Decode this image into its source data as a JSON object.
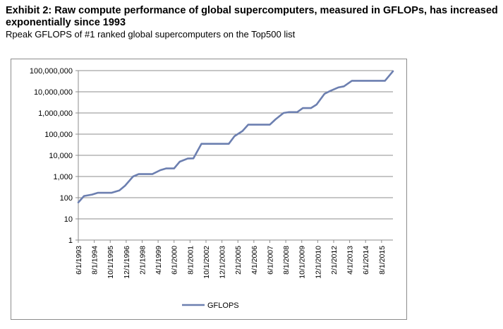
{
  "header": {
    "title": "Exhibit 2: Raw compute performance of global supercomputers, measured in GFLOPs, has increased exponentially since 1993",
    "subtitle": "Rpeak GFLOPS of #1 ranked global supercomputers on the Top500 list"
  },
  "chart_data": {
    "type": "line",
    "title": "",
    "xlabel": "",
    "ylabel": "",
    "y_scale": "log",
    "ylim": [
      1,
      100000000
    ],
    "y_ticks": [
      "1",
      "10",
      "100",
      "1,000",
      "10,000",
      "100,000",
      "1,000,000",
      "10,000,000",
      "100,000,000"
    ],
    "x_tick_labels": [
      "6/1/1993",
      "8/1/1994",
      "10/1/1995",
      "12/1/1996",
      "2/1/1998",
      "4/1/1999",
      "6/1/2000",
      "8/1/2001",
      "10/1/2002",
      "12/1/2003",
      "2/1/2005",
      "4/1/2006",
      "6/1/2007",
      "8/1/2008",
      "10/1/2009",
      "12/1/2010",
      "2/1/2012",
      "4/1/2013",
      "6/1/2014",
      "8/1/2015"
    ],
    "x_range": [
      "6/1/1993",
      "6/1/2016"
    ],
    "grid": "horizontal",
    "legend": "bottom",
    "series_color": "#6c7fb0",
    "series": [
      {
        "name": "GFLOPS",
        "points": [
          [
            "6/1/1993",
            60
          ],
          [
            "11/1/1993",
            120
          ],
          [
            "6/1/1994",
            140
          ],
          [
            "11/1/1994",
            170
          ],
          [
            "6/1/1995",
            170
          ],
          [
            "11/1/1995",
            170
          ],
          [
            "6/1/1996",
            220
          ],
          [
            "11/1/1996",
            370
          ],
          [
            "6/1/1997",
            1000
          ],
          [
            "11/1/1997",
            1300
          ],
          [
            "6/1/1998",
            1300
          ],
          [
            "11/1/1998",
            1300
          ],
          [
            "6/1/1999",
            2000
          ],
          [
            "11/1/1999",
            2400
          ],
          [
            "6/1/2000",
            2400
          ],
          [
            "11/1/2000",
            5000
          ],
          [
            "6/1/2001",
            7000
          ],
          [
            "11/1/2001",
            7200
          ],
          [
            "6/1/2002",
            35000
          ],
          [
            "11/1/2002",
            35000
          ],
          [
            "6/1/2003",
            35000
          ],
          [
            "11/1/2003",
            35000
          ],
          [
            "6/1/2004",
            35000
          ],
          [
            "11/1/2004",
            80000
          ],
          [
            "6/1/2005",
            140000
          ],
          [
            "11/1/2005",
            280000
          ],
          [
            "6/1/2006",
            280000
          ],
          [
            "11/1/2006",
            280000
          ],
          [
            "6/1/2007",
            280000
          ],
          [
            "11/1/2007",
            500000
          ],
          [
            "6/1/2008",
            1000000
          ],
          [
            "11/1/2008",
            1100000
          ],
          [
            "6/1/2009",
            1100000
          ],
          [
            "11/1/2009",
            1700000
          ],
          [
            "6/1/2010",
            1700000
          ],
          [
            "11/1/2010",
            2500000
          ],
          [
            "6/1/2011",
            8000000
          ],
          [
            "11/1/2011",
            11000000
          ],
          [
            "6/1/2012",
            16000000
          ],
          [
            "11/1/2012",
            18000000
          ],
          [
            "6/1/2013",
            33000000
          ],
          [
            "11/1/2013",
            33000000
          ],
          [
            "6/1/2014",
            33000000
          ],
          [
            "11/1/2014",
            33000000
          ],
          [
            "6/1/2015",
            33000000
          ],
          [
            "11/1/2015",
            33000000
          ],
          [
            "6/1/2016",
            93000000
          ]
        ]
      }
    ]
  }
}
